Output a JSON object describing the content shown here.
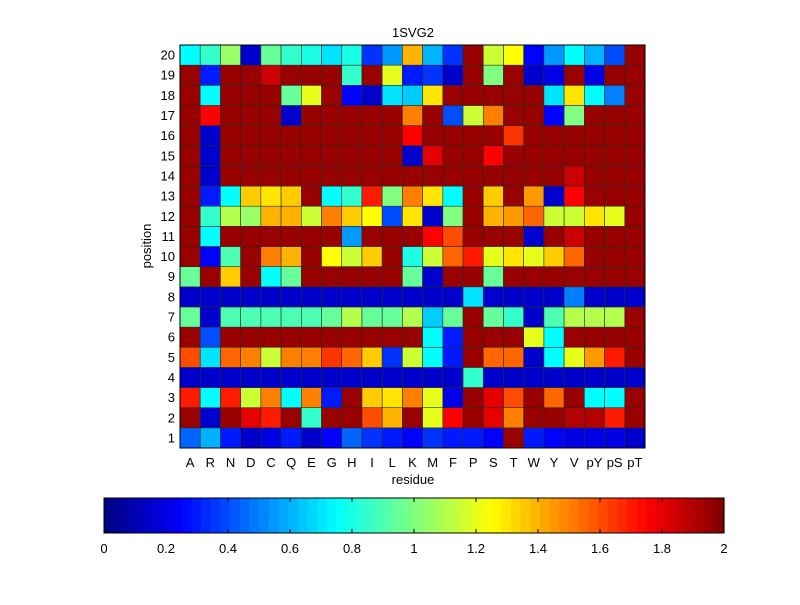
{
  "chart_data": {
    "type": "heatmap",
    "title": "1SVG2",
    "xlabel": "residue",
    "ylabel": "position",
    "x_categories": [
      "A",
      "R",
      "N",
      "D",
      "C",
      "Q",
      "E",
      "G",
      "H",
      "I",
      "L",
      "K",
      "M",
      "F",
      "P",
      "S",
      "T",
      "W",
      "Y",
      "V",
      "pY",
      "pS",
      "pT"
    ],
    "y_categories": [
      "1",
      "2",
      "3",
      "4",
      "5",
      "6",
      "7",
      "8",
      "9",
      "10",
      "11",
      "12",
      "13",
      "14",
      "15",
      "16",
      "17",
      "18",
      "19",
      "20"
    ],
    "colormap": "jet",
    "clim": [
      0,
      2
    ],
    "colorbar": {
      "orientation": "horizontal",
      "ticks": [
        0,
        0.2,
        0.4,
        0.6,
        0.8,
        1,
        1.2,
        1.4,
        1.6,
        1.8,
        2
      ],
      "tick_labels": [
        "0",
        "0.2",
        "0.4",
        "0.6",
        "0.8",
        "1",
        "1.2",
        "1.4",
        "1.6",
        "1.8",
        "2"
      ]
    },
    "values": [
      [
        0.45,
        0.6,
        0.3,
        0.15,
        0.2,
        0.3,
        0.15,
        0.25,
        0.45,
        0.35,
        0.3,
        0.25,
        0.35,
        0.3,
        0.3,
        0.25,
        1.95,
        0.3,
        0.25,
        0.2,
        0.2,
        0.2,
        0.15
      ],
      [
        1.95,
        0.15,
        1.95,
        1.8,
        1.7,
        1.95,
        0.85,
        1.95,
        1.95,
        1.6,
        1.4,
        1.95,
        1.2,
        1.75,
        1.95,
        1.8,
        1.5,
        1.95,
        1.95,
        1.9,
        1.9,
        1.7,
        1.95
      ],
      [
        1.7,
        0.75,
        1.7,
        1.15,
        1.5,
        0.75,
        1.5,
        0.3,
        1.95,
        1.35,
        1.3,
        1.5,
        1.2,
        0.2,
        1.95,
        1.8,
        1.6,
        1.95,
        1.55,
        1.95,
        0.75,
        0.75,
        1.95
      ],
      [
        0.15,
        0.15,
        0.15,
        0.15,
        0.15,
        0.15,
        0.15,
        0.15,
        0.15,
        0.15,
        0.15,
        0.15,
        0.15,
        0.15,
        0.85,
        0.15,
        0.15,
        0.15,
        0.15,
        0.15,
        0.15,
        0.15,
        0.15
      ],
      [
        1.6,
        0.7,
        1.55,
        1.5,
        1.15,
        1.5,
        1.5,
        1.65,
        1.55,
        1.35,
        0.35,
        1.15,
        0.75,
        0.3,
        1.95,
        1.55,
        1.55,
        0.15,
        0.75,
        1.2,
        1.45,
        1.7,
        1.95
      ],
      [
        1.95,
        0.4,
        1.95,
        1.95,
        1.95,
        1.95,
        1.95,
        1.95,
        1.95,
        1.95,
        1.95,
        1.95,
        0.75,
        0.3,
        1.95,
        1.95,
        1.95,
        1.2,
        0.75,
        1.95,
        1.95,
        1.95,
        1.95
      ],
      [
        0.95,
        0.15,
        0.9,
        0.9,
        0.9,
        0.9,
        0.9,
        0.95,
        1.1,
        0.95,
        0.95,
        1.1,
        0.65,
        0.95,
        1.95,
        0.95,
        0.85,
        0.15,
        0.9,
        1.1,
        1.1,
        1.1,
        1.95
      ],
      [
        0.15,
        0.15,
        0.15,
        0.15,
        0.15,
        0.15,
        0.15,
        0.15,
        0.15,
        0.15,
        0.15,
        0.15,
        0.15,
        0.15,
        0.7,
        0.15,
        0.15,
        0.15,
        0.15,
        0.5,
        0.15,
        0.15,
        0.15
      ],
      [
        0.95,
        1.95,
        1.35,
        1.95,
        0.75,
        0.95,
        1.95,
        1.95,
        1.95,
        1.95,
        1.95,
        0.95,
        0.15,
        1.95,
        1.95,
        0.95,
        1.95,
        1.95,
        1.95,
        1.95,
        1.95,
        1.95,
        1.95
      ],
      [
        1.95,
        0.25,
        0.9,
        1.95,
        1.5,
        1.4,
        1.95,
        1.25,
        1.15,
        1.35,
        1.95,
        0.8,
        1.15,
        1.55,
        1.7,
        1.2,
        1.3,
        1.2,
        1.35,
        1.55,
        1.95,
        1.95,
        1.95
      ],
      [
        1.95,
        0.75,
        1.95,
        1.95,
        1.95,
        1.95,
        1.95,
        1.95,
        0.55,
        1.95,
        1.95,
        1.95,
        1.75,
        1.6,
        1.95,
        1.95,
        1.95,
        0.15,
        1.95,
        1.85,
        1.95,
        1.95,
        1.95
      ],
      [
        1.95,
        0.85,
        1.1,
        1.05,
        1.4,
        1.4,
        1.15,
        1.5,
        1.35,
        1.25,
        0.4,
        1.3,
        0.15,
        1.0,
        1.95,
        1.4,
        1.45,
        1.55,
        1.15,
        1.15,
        1.3,
        1.2,
        1.95
      ],
      [
        1.95,
        0.3,
        0.75,
        1.35,
        1.3,
        1.35,
        1.95,
        0.75,
        0.85,
        1.7,
        1.0,
        1.5,
        1.3,
        0.75,
        1.95,
        1.35,
        1.95,
        1.45,
        0.15,
        1.75,
        1.95,
        1.95,
        1.95
      ],
      [
        1.95,
        0.15,
        1.95,
        1.95,
        1.95,
        1.95,
        1.95,
        1.95,
        1.95,
        1.95,
        1.95,
        1.95,
        1.95,
        1.95,
        1.95,
        1.95,
        1.95,
        1.95,
        1.95,
        1.85,
        1.95,
        1.95,
        1.95
      ],
      [
        1.95,
        0.15,
        1.95,
        1.95,
        1.95,
        1.95,
        1.95,
        1.95,
        1.95,
        1.95,
        1.95,
        0.15,
        1.8,
        1.95,
        1.95,
        1.75,
        1.95,
        1.95,
        1.95,
        1.95,
        1.95,
        1.95,
        1.95
      ],
      [
        1.95,
        0.15,
        1.95,
        1.95,
        1.95,
        1.95,
        1.95,
        1.95,
        1.95,
        1.95,
        1.95,
        1.75,
        1.95,
        1.95,
        1.95,
        1.95,
        1.65,
        1.95,
        1.95,
        1.95,
        1.95,
        1.95,
        1.95
      ],
      [
        1.95,
        1.75,
        1.95,
        1.95,
        1.95,
        0.15,
        1.95,
        1.95,
        1.95,
        1.95,
        1.95,
        1.5,
        1.95,
        0.4,
        1.15,
        1.5,
        1.95,
        1.95,
        0.25,
        1.0,
        1.95,
        1.95,
        1.95
      ],
      [
        1.95,
        0.75,
        1.95,
        1.95,
        1.95,
        0.95,
        1.2,
        1.95,
        0.25,
        0.15,
        0.7,
        0.65,
        1.3,
        1.95,
        1.95,
        1.95,
        1.95,
        1.95,
        0.7,
        1.3,
        0.75,
        0.5,
        1.95
      ],
      [
        1.95,
        0.3,
        1.95,
        1.95,
        1.85,
        1.95,
        1.95,
        1.95,
        0.85,
        1.95,
        1.2,
        0.3,
        0.35,
        0.15,
        1.95,
        1.0,
        1.95,
        0.15,
        0.2,
        1.95,
        0.2,
        1.95,
        1.95
      ],
      [
        0.75,
        0.85,
        1.05,
        0.15,
        0.95,
        0.85,
        0.8,
        0.7,
        0.8,
        0.35,
        0.55,
        1.4,
        0.6,
        0.35,
        1.95,
        1.15,
        1.25,
        0.25,
        0.55,
        0.75,
        0.6,
        0.4,
        1.95
      ]
    ]
  }
}
